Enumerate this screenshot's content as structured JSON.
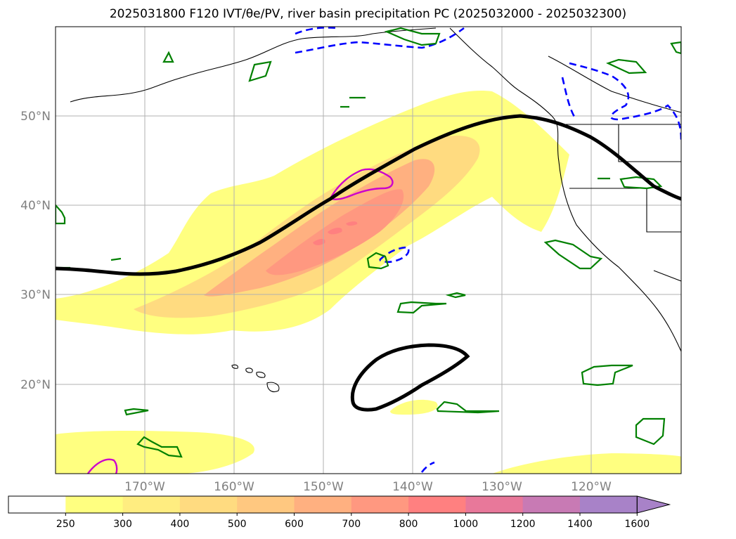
{
  "title": "2025031800 F120 IVT/θe/PV, river basin precipitation PC (2025032000 - 2025032300)",
  "lat_labels": [
    "50°N",
    "40°N",
    "30°N",
    "20°N"
  ],
  "lon_labels": [
    "170°W",
    "160°W",
    "150°W",
    "140°W",
    "130°W",
    "120°W"
  ],
  "colorbar": {
    "ticks": [
      "250",
      "300",
      "400",
      "500",
      "600",
      "700",
      "800",
      "1000",
      "1200",
      "1400",
      "1600"
    ],
    "colors": [
      "#ffffff",
      "#ffff80",
      "#ffed80",
      "#ffdb80",
      "#ffc880",
      "#ffb080",
      "#ff9880",
      "#ff8080",
      "#e8789a",
      "#c87ab4",
      "#a882c8"
    ],
    "extend": "max"
  },
  "colors": {
    "ivt_low": "#ffff80",
    "ivt_mid": "#ffd780",
    "ivt_high": "#ff9a80",
    "theta_contour": "#000000",
    "pv_positive": "#0000ff",
    "pv_magenta": "#cc00cc",
    "basin_outline": "#008000",
    "coastline": "#000000",
    "grid": "#b0b0b0"
  }
}
